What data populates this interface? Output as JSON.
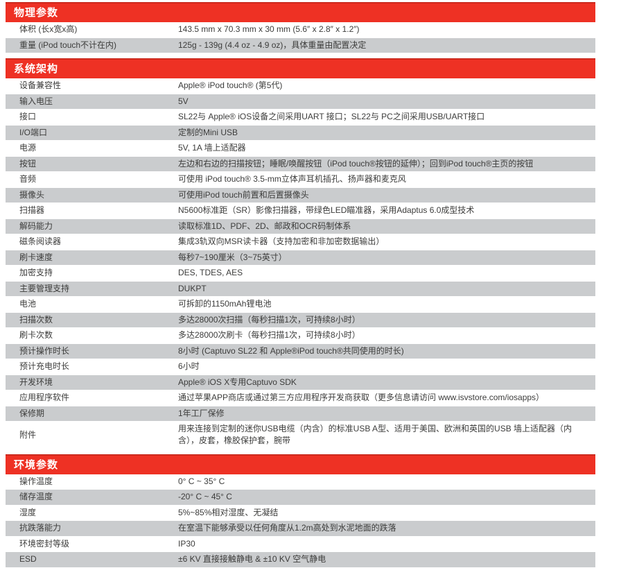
{
  "colors": {
    "header_bg": "#EE3124",
    "header_text": "#FFFFFF",
    "stripe": "#CACCCE",
    "row_text": "#3C3C3B"
  },
  "sections": [
    {
      "title": "物理参数",
      "rows": [
        {
          "label": "体积 (长x宽x高)",
          "value": "143.5 mm x 70.3 mm x 30 mm (5.6″ x 2.8″ x 1.2″)"
        },
        {
          "label": "重量 (iPod touch不计在内)",
          "value": "125g - 139g (4.4 oz - 4.9 oz)，具体重量由配置决定"
        }
      ]
    },
    {
      "title": "系统架构",
      "rows": [
        {
          "label": "设备兼容性",
          "value": "Apple® iPod touch® (第5代)"
        },
        {
          "label": "输入电压",
          "value": "5V"
        },
        {
          "label": "接口",
          "value": "SL22与 Apple® iOS设备之间采用UART 接口；SL22与 PC之间采用USB/UART接口"
        },
        {
          "label": "I/O端口",
          "value": "定制的Mini USB"
        },
        {
          "label": "电源",
          "value": "5V, 1A 墙上适配器"
        },
        {
          "label": "按钮",
          "value": "左边和右边的扫描按钮；睡眠/唤醒按钮（iPod touch®按钮的延伸）；回到iPod touch®主页的按钮"
        },
        {
          "label": "音频",
          "value": "可使用 iPod touch® 3.5-mm立体声耳机插孔、扬声器和麦克风"
        },
        {
          "label": "摄像头",
          "value": "可使用iPod touch前置和后置摄像头"
        },
        {
          "label": "扫描器",
          "value": "N5600标准距（SR）影像扫描器，带绿色LED瞄准器，采用Adaptus 6.0成型技术"
        },
        {
          "label": "解码能力",
          "value": "读取标准1D、PDF、2D、邮政和OCR码制体系"
        },
        {
          "label": "磁条阅读器",
          "value": "集成3轨双向MSR读卡器（支持加密和非加密数据输出）"
        },
        {
          "label": "刷卡速度",
          "value": "每秒7~190厘米（3~75英寸）"
        },
        {
          "label": "加密支持",
          "value": "DES, TDES, AES"
        },
        {
          "label": "主要管理支持",
          "value": "DUKPT"
        },
        {
          "label": "电池",
          "value": "可拆卸的1150mAh锂电池"
        },
        {
          "label": "扫描次数",
          "value": "多达28000次扫描（每秒扫描1次，可持续8小时）"
        },
        {
          "label": "刷卡次数",
          "value": "多达28000次刷卡（每秒扫描1次，可持续8小时）"
        },
        {
          "label": "预计操作时长",
          "value": "8小时 (Captuvo SL22 和 Apple®iPod touch®共同使用的时长)"
        },
        {
          "label": "预计充电时长",
          "value": "6小时"
        },
        {
          "label": "开发环境",
          "value": "Apple® iOS X专用Captuvo SDK"
        },
        {
          "label": "应用程序软件",
          "value": "通过苹果APP商店或通过第三方应用程序开发商获取（更多信息请访问 www.isvstore.com/iosapps）"
        },
        {
          "label": "保修期",
          "value": "1年工厂保修"
        },
        {
          "label": "附件",
          "value": "用来连接到定制的迷你USB电缆（内含）的标准USB A型、适用于美国、欧洲和英国的USB 墙上适配器（内含），皮套，橡胶保护套，腕带"
        }
      ]
    },
    {
      "title": "环境参数",
      "rows": [
        {
          "label": "操作温度",
          "value": "0° C ~ 35° C"
        },
        {
          "label": "储存温度",
          "value": "-20° C ~ 45° C"
        },
        {
          "label": "湿度",
          "value": "5%~85%相对湿度、无凝结"
        },
        {
          "label": "抗跌落能力",
          "value": "在室温下能够承受以任何角度从1.2m高处到水泥地面的跌落"
        },
        {
          "label": "环境密封等级",
          "value": "IP30"
        },
        {
          "label": "ESD",
          "value": "±6 KV 直接接触静电 & ±10 KV 空气静电"
        }
      ]
    }
  ]
}
